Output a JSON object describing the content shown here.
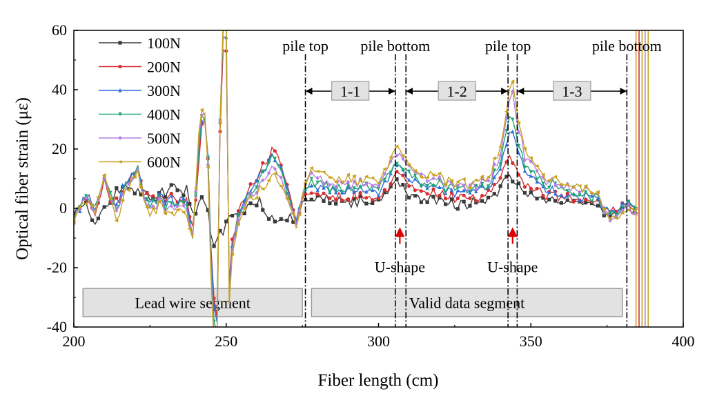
{
  "chart_data": {
    "type": "line",
    "xlabel": "Fiber length (cm)",
    "ylabel": "Optical fiber strain (με)",
    "xlim": [
      200,
      400
    ],
    "ylim": [
      -40,
      60
    ],
    "xticks": [
      200,
      250,
      300,
      350,
      400
    ],
    "yticks": [
      -40,
      -20,
      0,
      20,
      40,
      60
    ],
    "legend_position": "top-left",
    "series": [
      {
        "name": "100N",
        "color": "#3a3a3a",
        "marker": "square"
      },
      {
        "name": "200N",
        "color": "#d62f2f",
        "marker": "circle"
      },
      {
        "name": "300N",
        "color": "#2e6fd8",
        "marker": "triangle"
      },
      {
        "name": "400N",
        "color": "#1fa571",
        "marker": "triangle-down"
      },
      {
        "name": "500N",
        "color": "#b57ee0",
        "marker": "diamond"
      },
      {
        "name": "600N",
        "color": "#c8a21e",
        "marker": "triangle-left"
      }
    ],
    "markers": [
      {
        "x": 276,
        "label": "pile top"
      },
      {
        "x": 305.5,
        "label": "pile bottom"
      },
      {
        "x": 309
      },
      {
        "x": 342.5,
        "label": "pile top"
      },
      {
        "x": 345.5
      },
      {
        "x": 381.5,
        "label": "pile bottom"
      }
    ],
    "segments": [
      {
        "label": "1-1",
        "x_start": 276,
        "x_end": 305.5,
        "y": 39.5
      },
      {
        "label": "1-2",
        "x_start": 309,
        "x_end": 342.5,
        "y": 39.5
      },
      {
        "label": "1-3",
        "x_start": 345.5,
        "x_end": 381.5,
        "y": 39.5
      }
    ],
    "u_shape_annotations": [
      {
        "label": "U-shape",
        "x": 307,
        "y": -13
      },
      {
        "label": "U-shape",
        "x": 344,
        "y": -13
      }
    ],
    "region_boxes": [
      {
        "label": "Lead wire segment",
        "x_start": 203,
        "x_end": 275
      },
      {
        "label": "Valid data segment",
        "x_start": 278,
        "x_end": 380
      }
    ],
    "control_points": [
      [
        200,
        [
          -2,
          -3,
          -3,
          -3,
          -4,
          -3
        ]
      ],
      [
        203,
        [
          1,
          2,
          2,
          2,
          2,
          1
        ]
      ],
      [
        205,
        [
          -1,
          3,
          4,
          3,
          4,
          2
        ]
      ],
      [
        207,
        [
          -4,
          -1,
          0,
          1,
          -1,
          0
        ]
      ],
      [
        210,
        [
          0,
          9,
          10,
          10,
          11,
          11
        ]
      ],
      [
        212,
        [
          3,
          4,
          5,
          5,
          5,
          4
        ]
      ],
      [
        214,
        [
          5,
          2,
          1,
          0,
          -1,
          -4
        ]
      ],
      [
        216,
        [
          7,
          5,
          6,
          5,
          4,
          3
        ]
      ],
      [
        218,
        [
          6,
          9,
          10,
          9,
          8,
          7
        ]
      ],
      [
        221,
        [
          5,
          13,
          14,
          13,
          12,
          12
        ]
      ],
      [
        223,
        [
          6,
          5,
          5,
          4,
          3,
          2
        ]
      ],
      [
        225,
        [
          2,
          3,
          2,
          1,
          0,
          -2
        ]
      ],
      [
        228,
        [
          5,
          5,
          4,
          3,
          2,
          1
        ]
      ],
      [
        231,
        [
          6,
          4,
          3,
          1,
          0,
          -2
        ]
      ],
      [
        233,
        [
          8,
          3,
          2,
          1,
          0,
          -1
        ]
      ],
      [
        235,
        [
          5,
          4,
          4,
          3,
          2,
          1
        ]
      ],
      [
        237,
        [
          6,
          2,
          1,
          0,
          -1,
          -3
        ]
      ],
      [
        239,
        [
          -3,
          -8,
          -10,
          -11,
          -11,
          -12
        ]
      ],
      [
        241,
        [
          2,
          15,
          18,
          20,
          22,
          24
        ]
      ],
      [
        242,
        [
          3,
          28,
          29,
          30,
          31,
          32
        ]
      ],
      [
        243.5,
        [
          1,
          31,
          32,
          32,
          33,
          33
        ]
      ],
      [
        245.5,
        [
          -12,
          -28,
          -30,
          -35,
          -40,
          -45
        ]
      ],
      [
        247,
        [
          -10,
          -36,
          -38,
          -40,
          -42,
          -45
        ]
      ],
      [
        248.5,
        [
          -8,
          55,
          60,
          62,
          63,
          64
        ]
      ],
      [
        250,
        [
          -5,
          52,
          58,
          60,
          62,
          64
        ]
      ],
      [
        250.8,
        [
          -3,
          -28,
          -30,
          -32,
          -33,
          -35
        ]
      ],
      [
        252,
        [
          -3,
          -12,
          -14,
          -15,
          -16,
          -17
        ]
      ],
      [
        253.5,
        [
          -1,
          -3,
          -4,
          -4,
          -4,
          -5
        ]
      ],
      [
        255,
        [
          0,
          3,
          2,
          1,
          0,
          -1
        ]
      ],
      [
        258,
        [
          1,
          7,
          6,
          5,
          4,
          3
        ]
      ],
      [
        261,
        [
          2,
          12,
          11,
          10,
          8,
          6
        ]
      ],
      [
        263,
        [
          -2,
          15,
          14,
          13,
          10,
          8
        ]
      ],
      [
        265,
        [
          -4,
          19,
          17,
          16,
          13,
          11
        ]
      ],
      [
        267,
        [
          -5,
          17,
          16,
          15,
          12,
          10
        ]
      ],
      [
        269,
        [
          -4,
          11,
          10,
          9,
          7,
          6
        ]
      ],
      [
        271,
        [
          -3,
          4,
          3,
          2,
          1,
          0
        ]
      ],
      [
        273,
        [
          -5,
          -4,
          -4,
          -5,
          -5,
          -6
        ]
      ],
      [
        275,
        [
          2,
          3,
          4,
          4,
          4,
          4
        ]
      ],
      [
        277,
        [
          3,
          5,
          7,
          8,
          10,
          12
        ]
      ],
      [
        280,
        [
          3,
          5,
          7,
          8,
          10,
          12
        ]
      ],
      [
        285,
        [
          3,
          4,
          6,
          7,
          8,
          10
        ]
      ],
      [
        290,
        [
          2,
          4,
          6,
          7,
          8,
          10
        ]
      ],
      [
        295,
        [
          2,
          4,
          6,
          7,
          8,
          9
        ]
      ],
      [
        300,
        [
          3,
          4,
          6,
          8,
          9,
          10
        ]
      ],
      [
        303,
        [
          5,
          6,
          9,
          11,
          13,
          14
        ]
      ],
      [
        305,
        [
          8,
          10,
          13,
          15,
          17,
          19
        ]
      ],
      [
        306.5,
        [
          9,
          12,
          14,
          16,
          18,
          20
        ]
      ],
      [
        308,
        [
          7,
          10,
          12,
          14,
          16,
          18
        ]
      ],
      [
        310,
        [
          5,
          8,
          10,
          12,
          14,
          16
        ]
      ],
      [
        313,
        [
          4,
          7,
          9,
          10,
          12,
          13
        ]
      ],
      [
        318,
        [
          3,
          5,
          7,
          8,
          10,
          11
        ]
      ],
      [
        325,
        [
          2,
          4,
          6,
          7,
          8,
          9
        ]
      ],
      [
        332,
        [
          2,
          4,
          6,
          7,
          8,
          9
        ]
      ],
      [
        337,
        [
          4,
          6,
          8,
          9,
          11,
          12
        ]
      ],
      [
        340,
        [
          7,
          10,
          14,
          16,
          19,
          21
        ]
      ],
      [
        341.5,
        [
          9,
          13,
          18,
          22,
          25,
          28
        ]
      ],
      [
        343,
        [
          11,
          18,
          27,
          32,
          38,
          40
        ]
      ],
      [
        344,
        [
          10,
          15,
          26,
          30,
          41,
          43
        ]
      ],
      [
        345.5,
        [
          8,
          12,
          20,
          24,
          28,
          32
        ]
      ],
      [
        348,
        [
          5,
          8,
          12,
          15,
          18,
          20
        ]
      ],
      [
        352,
        [
          3,
          6,
          8,
          10,
          12,
          13
        ]
      ],
      [
        358,
        [
          2,
          4,
          5,
          7,
          8,
          9
        ]
      ],
      [
        365,
        [
          2,
          3,
          4,
          5,
          6,
          7
        ]
      ],
      [
        372,
        [
          1,
          2,
          3,
          3,
          4,
          4
        ]
      ],
      [
        376,
        [
          -2,
          -1,
          -1,
          -2,
          -3,
          -4
        ]
      ],
      [
        380,
        [
          0,
          1,
          0,
          -1,
          -1,
          -2
        ]
      ],
      [
        383,
        [
          0,
          1,
          1,
          1,
          0,
          0
        ]
      ],
      [
        385,
        [
          -1,
          0,
          0,
          -1,
          -1,
          -1
        ]
      ]
    ]
  }
}
